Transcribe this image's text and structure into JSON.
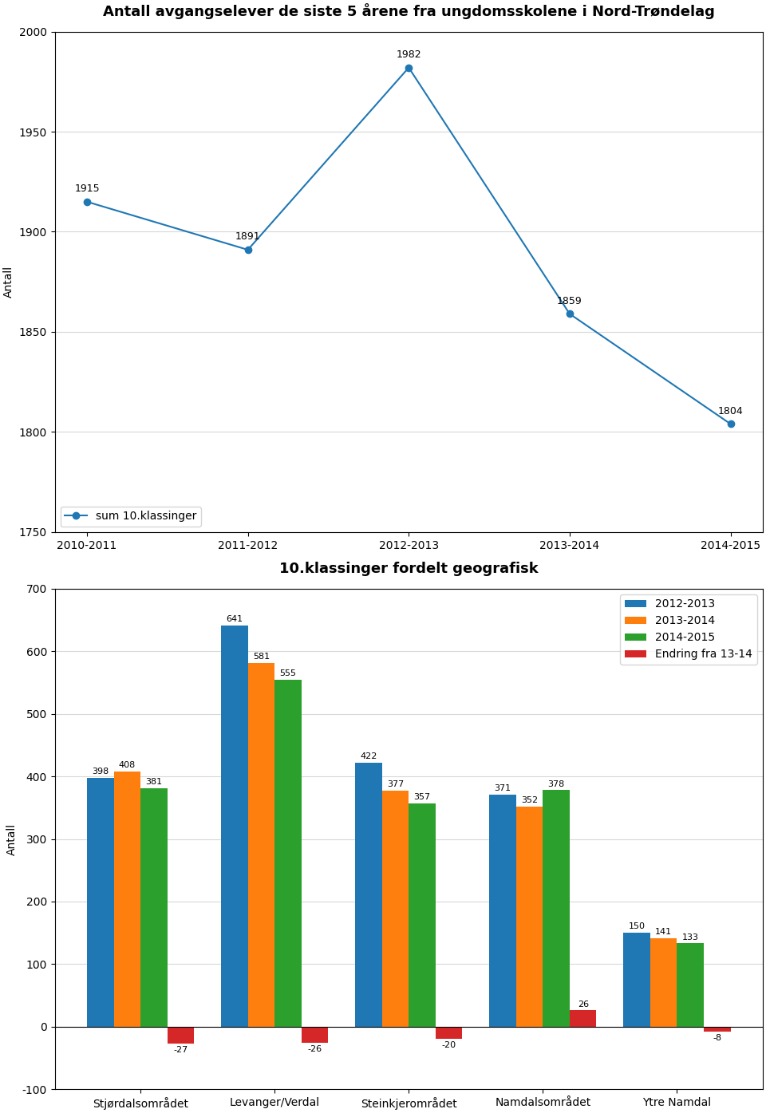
{
  "chart_data": [
    {
      "type": "line",
      "title": "Antall avgangselever de siste 5 årene fra ungdomsskolene i Nord-Trøndelag",
      "ylabel": "Antall",
      "categories": [
        "2010-2011",
        "2011-2012",
        "2012-2013",
        "2013-2014",
        "2014-2015"
      ],
      "series": [
        {
          "name": "sum 10.klassinger",
          "values": [
            1915,
            1891,
            1982,
            1859,
            1804
          ]
        }
      ],
      "ylim": [
        1750,
        2000
      ],
      "yticks": [
        1750,
        1800,
        1850,
        1900,
        1950,
        2000
      ],
      "grid": true,
      "legend": "lower left",
      "data_labels": true
    },
    {
      "type": "bar",
      "title": "10.klassinger fordelt geografisk",
      "ylabel": "Antall",
      "categories": [
        "Stjørdalsområdet",
        "Levanger/Verdal",
        "Steinkjerområdet",
        "Namdalsområdet",
        "Ytre Namdal"
      ],
      "series": [
        {
          "name": "2012-2013",
          "values": [
            398,
            641,
            422,
            371,
            150
          ]
        },
        {
          "name": "2013-2014",
          "values": [
            408,
            581,
            377,
            352,
            141
          ]
        },
        {
          "name": "2014-2015",
          "values": [
            381,
            555,
            357,
            378,
            133
          ]
        },
        {
          "name": "Endring fra 13-14",
          "values": [
            -27,
            -26,
            -20,
            26,
            -8
          ]
        }
      ],
      "ylim": [
        -100,
        700
      ],
      "yticks": [
        -100,
        0,
        100,
        200,
        300,
        400,
        500,
        600,
        700
      ],
      "grid": true,
      "legend": "upper right",
      "data_labels": true
    }
  ]
}
